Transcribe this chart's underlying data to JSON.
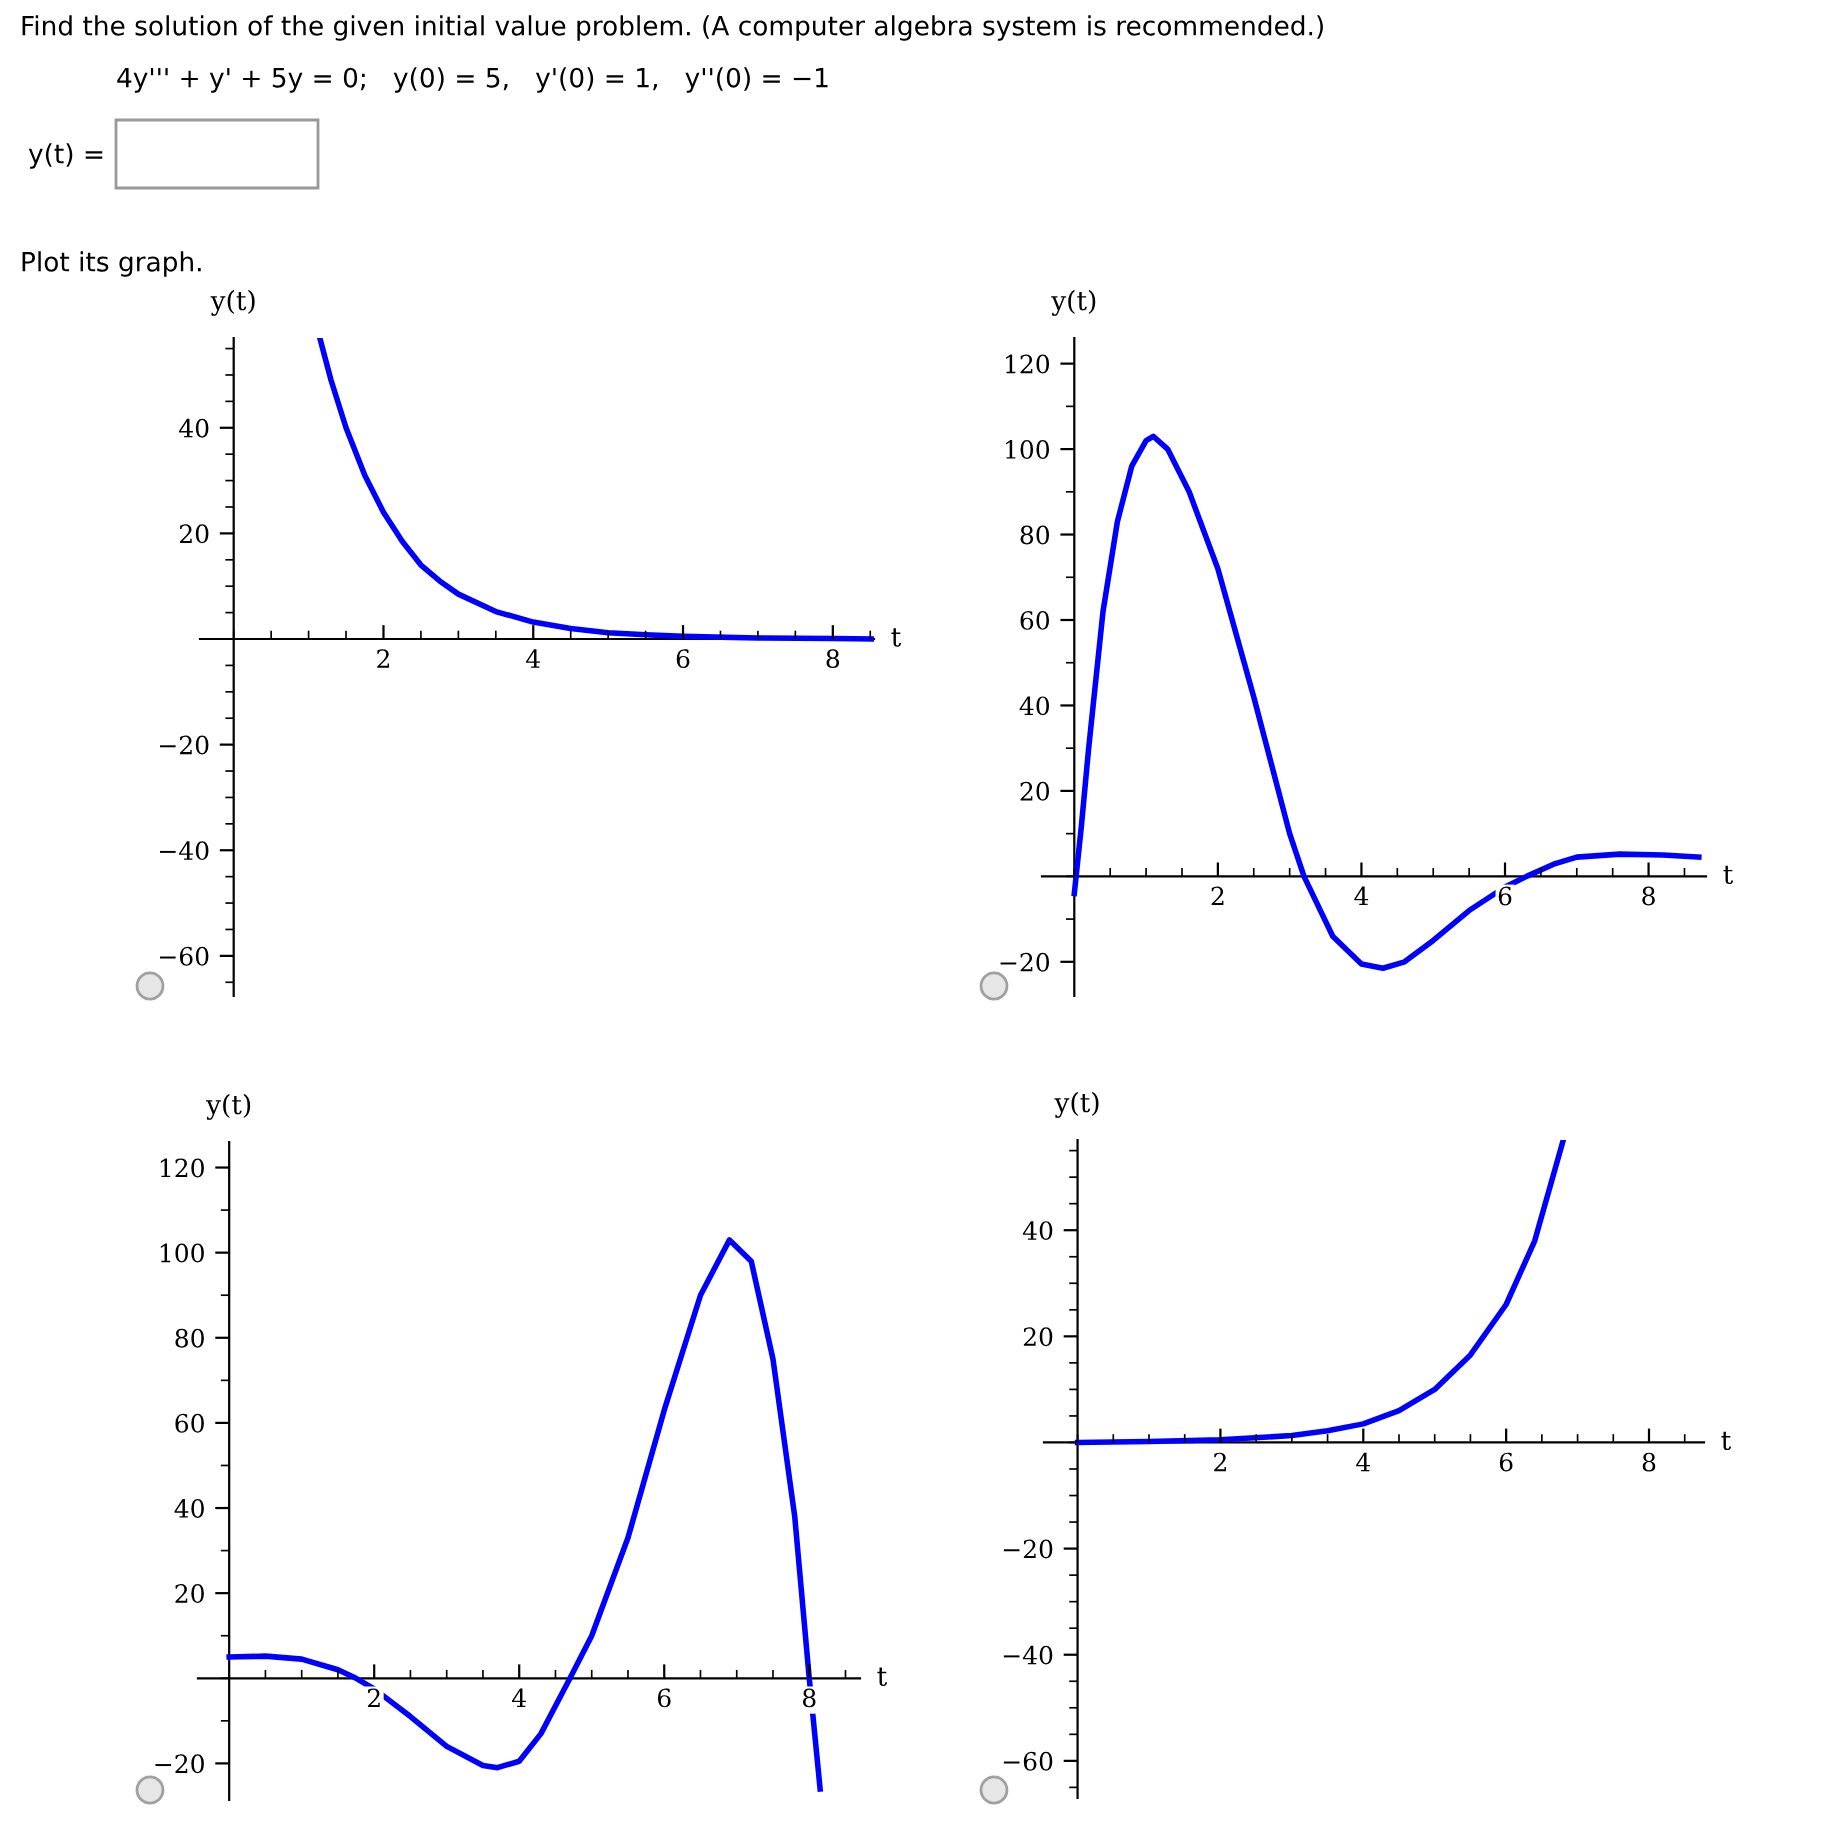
{
  "chart_data": [
    {
      "type": "other",
      "annotations": [
        "Find the solution of the given initial value problem. (A computer algebra system is recommended.)",
        "4y''' + y' + 5y = 0;   y(0) = 5,   y'(0) = 1,   y''(0) = −1",
        "y(t) =",
        "Plot its graph."
      ]
    },
    {
      "type": "line",
      "xlabel": "t",
      "ylabel": "y(t)",
      "color": "#0000ff",
      "xlim": [
        -0.45,
        8.55
      ],
      "ylim": [
        -67.6,
        57
      ],
      "xticks": [
        2,
        4,
        6,
        8
      ],
      "yticks": [
        {
          "value": -60,
          "label": "−60"
        },
        {
          "value": -40,
          "label": "−40"
        },
        {
          "value": -20,
          "label": "−20"
        },
        20,
        40
      ],
      "x": [
        1.15,
        1.3,
        1.5,
        1.75,
        2.0,
        2.25,
        2.5,
        2.75,
        3.0,
        3.5,
        4.0,
        4.5,
        5.0,
        5.5,
        6.0,
        7.0,
        8.0,
        8.55
      ],
      "values": [
        57,
        49,
        40,
        31,
        24,
        18.5,
        14,
        11,
        8.5,
        5.2,
        3.2,
        2,
        1.2,
        0.8,
        0.5,
        0.2,
        0.1,
        0
      ]
    },
    {
      "type": "line",
      "xlabel": "t",
      "ylabel": "y(t)",
      "color": "#0000ff",
      "xlim": [
        -0.45,
        8.8
      ],
      "ylim": [
        -28,
        126
      ],
      "xticks": [
        2,
        4,
        6,
        8
      ],
      "yticks": [
        {
          "value": -20,
          "label": "−20"
        },
        20,
        40,
        60,
        80,
        100,
        120
      ],
      "x": [
        0,
        0.1,
        0.2,
        0.4,
        0.6,
        0.8,
        1.0,
        1.1,
        1.3,
        1.6,
        2.0,
        2.5,
        3.0,
        3.2,
        3.6,
        4.0,
        4.3,
        4.6,
        5.0,
        5.5,
        6.0,
        6.3,
        6.7,
        7.0,
        7.6,
        8.2,
        8.7
      ],
      "values": [
        -4,
        12,
        30,
        62,
        83,
        96,
        102,
        103,
        100,
        90,
        72,
        42,
        10,
        0,
        -14,
        -20.5,
        -21.5,
        -20,
        -15,
        -8,
        -2.5,
        0,
        3,
        4.5,
        5.2,
        5,
        4.5
      ]
    },
    {
      "type": "line",
      "xlabel": "t",
      "ylabel": "y(t)",
      "color": "#0000ff",
      "xlim": [
        -0.43,
        8.7
      ],
      "ylim": [
        -28.6,
        126
      ],
      "xticks": [
        2,
        4,
        6,
        8
      ],
      "yticks": [
        {
          "value": -20,
          "label": "−20"
        },
        20,
        40,
        60,
        80,
        100,
        120
      ],
      "x": [
        0,
        0.5,
        1.0,
        1.5,
        1.75,
        2.0,
        2.5,
        3.0,
        3.5,
        3.7,
        4.0,
        4.3,
        4.7,
        5.0,
        5.5,
        6.0,
        6.5,
        6.9,
        7.2,
        7.5,
        7.8,
        8.0,
        8.15
      ],
      "values": [
        5,
        5.2,
        4.5,
        2,
        0,
        -2.5,
        -9,
        -16,
        -20.5,
        -21,
        -19.5,
        -13,
        0,
        10,
        33,
        63,
        90,
        103,
        98,
        75,
        38,
        0,
        -26
      ]
    },
    {
      "type": "line",
      "xlabel": "t",
      "ylabel": "y(t)",
      "color": "#0000ff",
      "xlim": [
        -0.47,
        8.77
      ],
      "ylim": [
        -67,
        57
      ],
      "xticks": [
        2,
        4,
        6,
        8
      ],
      "yticks": [
        {
          "value": -60,
          "label": "−60"
        },
        {
          "value": -40,
          "label": "−40"
        },
        {
          "value": -20,
          "label": "−20"
        },
        20,
        40
      ],
      "x": [
        0,
        1.0,
        2.0,
        3.0,
        3.5,
        4.0,
        4.5,
        5.0,
        5.5,
        6.0,
        6.4,
        6.8
      ],
      "values": [
        0,
        0.2,
        0.5,
        1.3,
        2.2,
        3.5,
        6,
        10,
        16.5,
        26,
        38,
        57
      ]
    }
  ]
}
